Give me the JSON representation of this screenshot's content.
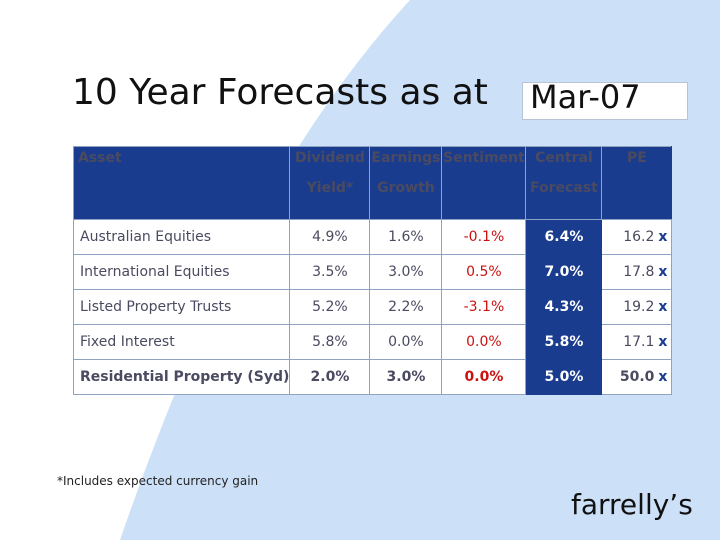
{
  "slide": {
    "title": "10 Year Forecasts as at",
    "title_date": "Mar-07",
    "footnote": "*Includes expected currency gain",
    "brand": "farrelly’s"
  },
  "table": {
    "headers": {
      "asset": "Asset",
      "dividend_line1": "Dividend",
      "dividend_line2": "Yield*",
      "earnings_line1": "Earnings",
      "earnings_line2": "Growth",
      "sentiment": "Sentiment",
      "central_line1": "Central",
      "central_line2": "Forecast",
      "pe": "PE"
    },
    "rows": [
      {
        "asset": "Australian  Equities",
        "dividend": "4.9%",
        "earnings": "1.6%",
        "sentiment": "-0.1%",
        "central": "6.4%",
        "pe": "16.2",
        "pe_suffix": "x"
      },
      {
        "asset": "International  Equities",
        "dividend": "3.5%",
        "earnings": "3.0%",
        "sentiment": "0.5%",
        "central": "7.0%",
        "pe": "17.8",
        "pe_suffix": "x"
      },
      {
        "asset": "Listed Property Trusts",
        "dividend": "5.2%",
        "earnings": "2.2%",
        "sentiment": "-3.1%",
        "central": "4.3%",
        "pe": "19.2",
        "pe_suffix": "x"
      },
      {
        "asset": "Fixed Interest",
        "dividend": "5.8%",
        "earnings": "0.0%",
        "sentiment": "0.0%",
        "central": "5.8%",
        "pe": "17.1",
        "pe_suffix": "x"
      },
      {
        "asset": "Residential Property (Syd)",
        "dividend": "2.0%",
        "earnings": "3.0%",
        "sentiment": "0.0%",
        "central": "5.0%",
        "pe": "50.0",
        "pe_suffix": "x"
      }
    ]
  },
  "colors": {
    "header_bg": "#1a3c8f",
    "sentiment_text": "#cc1111",
    "background_shape": "#cce0f8"
  }
}
